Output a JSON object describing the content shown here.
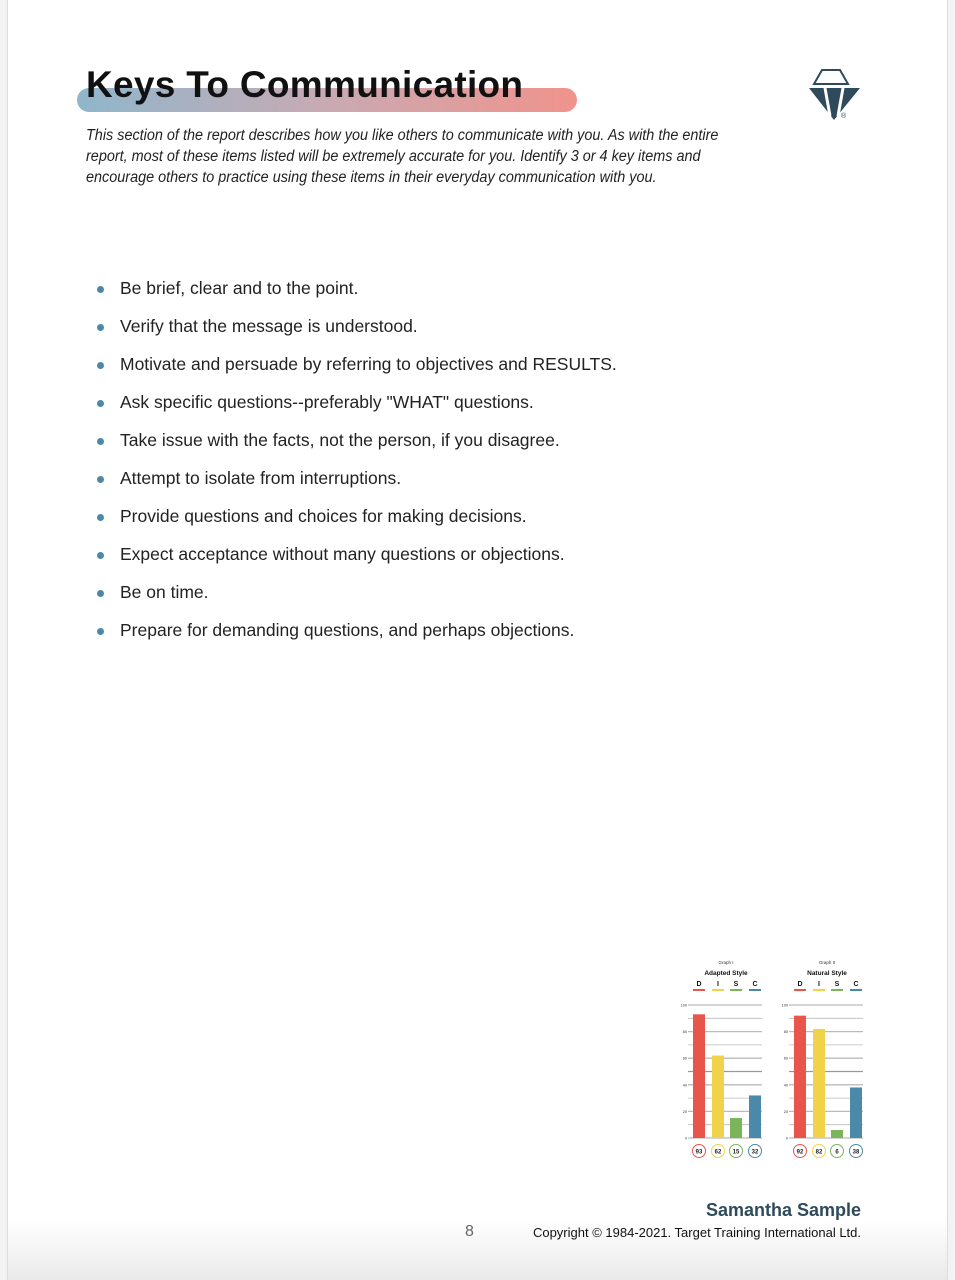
{
  "header": {
    "title": "Keys To Communication",
    "intro": "This section of the report describes how you like others to communicate with you.  As with the entire report, most of these items listed will be extremely accurate for you.  Identify 3 or 4 key items and encourage others to practice using these items in their everyday communication with you.",
    "logo_icon": "ttisi-diamond-logo-icon"
  },
  "items": [
    "Be brief, clear and to the point.",
    "Verify that the message is understood.",
    "Motivate and persuade by referring to objectives and RESULTS.",
    "Ask specific questions--preferably \"WHAT\" questions.",
    "Take issue with the facts, not the person, if you disagree.",
    "Attempt to isolate from interruptions.",
    "Provide questions and choices for making decisions.",
    "Expect acceptance without many questions or objections.",
    "Be on time.",
    "Prepare for demanding questions, and perhaps objections."
  ],
  "colors": {
    "D": "#e8554b",
    "I": "#f0d34a",
    "S": "#7ab55a",
    "C": "#4a8aa8",
    "accent": "#2f4b5b"
  },
  "chart_data": [
    {
      "type": "bar",
      "title": "Adapted Style",
      "subtitle": "Graph I",
      "categories": [
        "D",
        "I",
        "S",
        "C"
      ],
      "values": [
        93,
        62,
        15,
        32
      ],
      "ylim": [
        0,
        100
      ],
      "yticks": [
        "0",
        "20",
        "40",
        "60",
        "80",
        "100"
      ],
      "grid": true
    },
    {
      "type": "bar",
      "title": "Natural Style",
      "subtitle": "Graph II",
      "categories": [
        "D",
        "I",
        "S",
        "C"
      ],
      "values": [
        92,
        82,
        6,
        38
      ],
      "ylim": [
        0,
        100
      ],
      "yticks": [
        "0",
        "20",
        "40",
        "60",
        "80",
        "100"
      ],
      "grid": true
    }
  ],
  "footer": {
    "name": "Samantha Sample",
    "page": "8",
    "copyright": "Copyright © 1984-2021. Target Training International Ltd."
  }
}
